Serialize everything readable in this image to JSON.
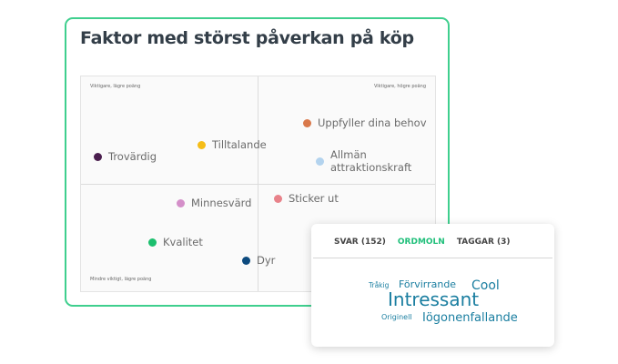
{
  "title": "Faktor med störst påverkan på köp",
  "quadrant_labels": {
    "top_left": "Viktigare, lägre poäng",
    "top_right": "Viktigare, högre poäng",
    "bottom_left": "Mindre viktigt, lägre poäng"
  },
  "points": [
    {
      "label": "Uppfyller dina behov",
      "color": "#d9784a"
    },
    {
      "label": "Tilltalande",
      "color": "#f5bd17"
    },
    {
      "label": "Trovärdig",
      "color": "#4a1e4e"
    },
    {
      "label": "Allmän attraktionskraft",
      "color": "#b3d3ee"
    },
    {
      "label": "Minnesvärd",
      "color": "#d48fc9"
    },
    {
      "label": "Sticker ut",
      "color": "#e8828a"
    },
    {
      "label": "Kvalitet",
      "color": "#1cbf6e"
    },
    {
      "label": "Dyr",
      "color": "#0c4a7e"
    }
  ],
  "panel": {
    "tabs": [
      {
        "label": "SVAR (152)"
      },
      {
        "label": "ORDMOLN",
        "active": true
      },
      {
        "label": "TAGGAR (3)"
      }
    ],
    "words": [
      "Tråkig",
      "Förvirrande",
      "Cool",
      "Intressant",
      "Originell",
      "Iögonenfallande"
    ]
  },
  "colors": {
    "accent": "#3fcf8e",
    "word": "#1a7ea0"
  }
}
